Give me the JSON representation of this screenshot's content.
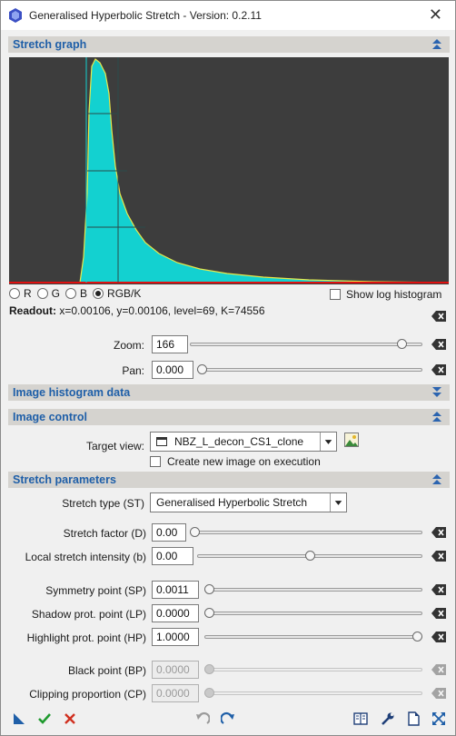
{
  "window": {
    "title": "Generalised Hyperbolic Stretch - Version: 0.2.11",
    "close_glyph": "✕"
  },
  "sections": {
    "stretch_graph": "Stretch graph",
    "image_histogram_data": "Image histogram data",
    "image_control": "Image control",
    "stretch_parameters": "Stretch parameters"
  },
  "graph": {
    "channels": [
      "R",
      "G",
      "B",
      "RGB/K"
    ],
    "selected_channel": "RGB/K",
    "show_log_histogram_label": "Show log histogram",
    "show_log_histogram": false,
    "readout_label": "Readout:",
    "readout_value": "x=0.00106, y=0.00106, level=69, K=74556",
    "colors": {
      "background": "#3d3d3d",
      "histogram": "#13d1d0",
      "curve": "#e8e84a",
      "baseline": "#e01010"
    }
  },
  "zoom": {
    "label": "Zoom:",
    "value": "166",
    "fraction": 0.93
  },
  "pan": {
    "label": "Pan:",
    "value": "0.000",
    "fraction": 0.0
  },
  "image_control": {
    "target_view_label": "Target view:",
    "target_view_value": "NBZ_L_decon_CS1_clone",
    "create_new_label": "Create new image on execution",
    "create_new_checked": false
  },
  "stretch": {
    "type_label": "Stretch type (ST)",
    "type_value": "Generalised Hyperbolic Stretch",
    "factor_label": "Stretch factor (D)",
    "factor_value": "0.00",
    "factor_fraction": 0.0,
    "local_label": "Local stretch intensity (b)",
    "local_value": "0.00",
    "local_fraction": 0.5,
    "sp_label": "Symmetry point (SP)",
    "sp_value": "0.0011",
    "sp_fraction": 0.0,
    "lp_label": "Shadow prot. point (LP)",
    "lp_value": "0.0000",
    "lp_fraction": 0.0,
    "hp_label": "Highlight prot. point (HP)",
    "hp_value": "1.0000",
    "hp_fraction": 1.0,
    "bp_label": "Black point (BP)",
    "bp_value": "0.0000",
    "bp_fraction": 0.0,
    "cp_label": "Clipping proportion (CP)",
    "cp_value": "0.0000",
    "cp_fraction": 0.0
  },
  "toolbar": {
    "icons": [
      "new-instance-icon",
      "apply-icon",
      "cancel-icon",
      "undo-icon",
      "redo-icon",
      "documentation-icon",
      "preferences-icon",
      "reset-icon",
      "expand-icon"
    ]
  }
}
